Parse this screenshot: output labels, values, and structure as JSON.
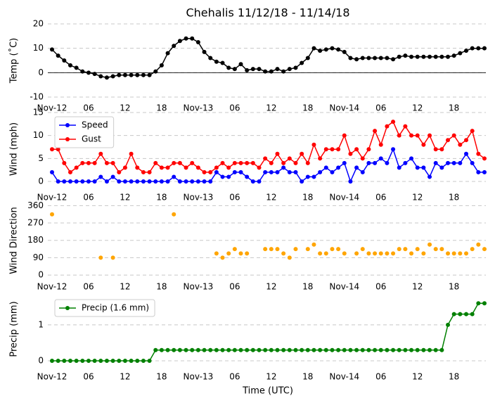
{
  "chart_data": [
    {
      "type": "line",
      "title": "Chehalis 11/12/18 - 11/14/18",
      "ylabel": "Temp (˚C)",
      "x": [
        0,
        1,
        2,
        3,
        4,
        5,
        6,
        7,
        8,
        9,
        10,
        11,
        12,
        13,
        14,
        15,
        16,
        17,
        18,
        19,
        20,
        21,
        22,
        23,
        24,
        25,
        26,
        27,
        28,
        29,
        30,
        31,
        32,
        33,
        34,
        35,
        36,
        37,
        38,
        39,
        40,
        41,
        42,
        43,
        44,
        45,
        46,
        47,
        48,
        49,
        50,
        51,
        52,
        53,
        54,
        55,
        56,
        57,
        58,
        59,
        60,
        61,
        62,
        63,
        64,
        65,
        66,
        67,
        68,
        69,
        70,
        71
      ],
      "xlim": [
        0,
        71
      ],
      "xticks": [
        {
          "value": 0,
          "label": "Nov-12"
        },
        {
          "value": 6,
          "label": "06"
        },
        12,
        18,
        {
          "value": 24,
          "label": "Nov-13"
        },
        {
          "value": 30,
          "label": "06"
        },
        {
          "value": 36,
          "label": "12"
        },
        {
          "value": 42,
          "label": "18"
        },
        {
          "value": 48,
          "label": "Nov-14"
        },
        {
          "value": 54,
          "label": "06"
        },
        {
          "value": 60,
          "label": "12"
        },
        {
          "value": 66,
          "label": "18"
        }
      ],
      "ylim": [
        -10,
        20
      ],
      "yticks": [
        -10,
        0,
        10,
        20
      ],
      "grid": true,
      "zero_line": true,
      "series": [
        {
          "color": "#000000",
          "values": [
            9.5,
            7,
            5,
            3,
            2,
            0.5,
            0,
            -0.5,
            -1.5,
            -2,
            -1.5,
            -1,
            -1,
            -1,
            -1,
            -1,
            -1,
            0.5,
            3,
            8,
            11,
            13,
            14,
            14,
            12.5,
            8.5,
            6,
            4.5,
            4,
            2,
            1.5,
            3.5,
            1,
            1.5,
            1.5,
            0.5,
            0.5,
            1.5,
            0.5,
            1.5,
            2,
            4,
            6,
            10,
            9,
            9.5,
            10,
            9.5,
            8.5,
            6,
            5.5,
            6,
            6,
            6,
            6,
            6,
            5.5,
            6.5,
            7,
            6.5,
            6.5,
            6.5,
            6.5,
            6.5,
            6.5,
            6.5,
            7,
            8,
            9,
            10,
            10,
            10
          ]
        }
      ]
    },
    {
      "type": "line",
      "ylabel": "Wind (mph)",
      "x": [
        0,
        1,
        2,
        3,
        4,
        5,
        6,
        7,
        8,
        9,
        10,
        11,
        12,
        13,
        14,
        15,
        16,
        17,
        18,
        19,
        20,
        21,
        22,
        23,
        24,
        25,
        26,
        27,
        28,
        29,
        30,
        31,
        32,
        33,
        34,
        35,
        36,
        37,
        38,
        39,
        40,
        41,
        42,
        43,
        44,
        45,
        46,
        47,
        48,
        49,
        50,
        51,
        52,
        53,
        54,
        55,
        56,
        57,
        58,
        59,
        60,
        61,
        62,
        63,
        64,
        65,
        66,
        67,
        68,
        69,
        70,
        71
      ],
      "xlim": [
        0,
        71
      ],
      "xticks": [
        {
          "value": 0,
          "label": "Nov-12"
        },
        {
          "value": 6,
          "label": "06"
        },
        12,
        18,
        {
          "value": 24,
          "label": "Nov-13"
        },
        {
          "value": 30,
          "label": "06"
        },
        {
          "value": 36,
          "label": "12"
        },
        {
          "value": 42,
          "label": "18"
        },
        {
          "value": 48,
          "label": "Nov-14"
        },
        {
          "value": 54,
          "label": "06"
        },
        {
          "value": 60,
          "label": "12"
        },
        {
          "value": 66,
          "label": "18"
        }
      ],
      "ylim": [
        -1,
        15
      ],
      "yticks": [
        0,
        5,
        10,
        15
      ],
      "grid": true,
      "legend": "upper left",
      "series": [
        {
          "name": "Speed",
          "color": "#0000ff",
          "values": [
            2,
            0,
            0,
            0,
            0,
            0,
            0,
            0,
            1,
            0,
            1,
            0,
            0,
            0,
            0,
            0,
            0,
            0,
            0,
            0,
            1,
            0,
            0,
            0,
            0,
            0,
            0,
            2,
            1,
            1,
            2,
            2,
            1,
            0,
            0,
            2,
            2,
            2,
            3,
            2,
            2,
            0,
            1,
            1,
            2,
            3,
            2,
            3,
            4,
            0,
            3,
            2,
            4,
            4,
            5,
            4,
            7,
            3,
            4,
            5,
            3,
            3,
            1,
            4,
            3,
            4,
            4,
            4,
            6,
            4,
            2,
            2
          ]
        },
        {
          "name": "Gust",
          "color": "#ff0000",
          "values": [
            7,
            7,
            4,
            2,
            3,
            4,
            4,
            4,
            6,
            4,
            4,
            2,
            3,
            6,
            3,
            2,
            2,
            4,
            3,
            3,
            4,
            4,
            3,
            4,
            3,
            2,
            2,
            3,
            4,
            3,
            4,
            4,
            4,
            4,
            3,
            5,
            4,
            6,
            4,
            5,
            4,
            6,
            4,
            8,
            5,
            7,
            7,
            7,
            10,
            6,
            7,
            5,
            7,
            11,
            8,
            12,
            13,
            10,
            12,
            10,
            10,
            8,
            10,
            7,
            7,
            9,
            10,
            8,
            9,
            11,
            6,
            5
          ]
        }
      ]
    },
    {
      "type": "scatter",
      "ylabel": "Wind Direction",
      "x": [
        0,
        1,
        2,
        3,
        4,
        5,
        6,
        7,
        8,
        9,
        10,
        11,
        12,
        13,
        14,
        15,
        16,
        17,
        18,
        19,
        20,
        21,
        22,
        23,
        24,
        25,
        26,
        27,
        28,
        29,
        30,
        31,
        32,
        33,
        34,
        35,
        36,
        37,
        38,
        39,
        40,
        41,
        42,
        43,
        44,
        45,
        46,
        47,
        48,
        49,
        50,
        51,
        52,
        53,
        54,
        55,
        56,
        57,
        58,
        59,
        60,
        61,
        62,
        63,
        64,
        65,
        66,
        67,
        68,
        69,
        70,
        71
      ],
      "xlim": [
        0,
        71
      ],
      "xticks": [
        {
          "value": 0,
          "label": "Nov-12"
        },
        {
          "value": 6,
          "label": "06"
        },
        12,
        18,
        {
          "value": 24,
          "label": "Nov-13"
        },
        {
          "value": 30,
          "label": "06"
        },
        {
          "value": 36,
          "label": "12"
        },
        {
          "value": 42,
          "label": "18"
        },
        {
          "value": 48,
          "label": "Nov-14"
        },
        {
          "value": 54,
          "label": "06"
        },
        {
          "value": 60,
          "label": "12"
        },
        {
          "value": 66,
          "label": "18"
        }
      ],
      "ylim": [
        -20,
        365
      ],
      "yticks": [
        0,
        90,
        180,
        270,
        360
      ],
      "grid": true,
      "series": [
        {
          "color": "#ffa500",
          "values": [
            315,
            null,
            null,
            null,
            null,
            null,
            null,
            null,
            90,
            null,
            90,
            null,
            null,
            null,
            null,
            null,
            null,
            null,
            null,
            null,
            315,
            null,
            null,
            null,
            null,
            null,
            null,
            112,
            90,
            112,
            135,
            112,
            112,
            null,
            null,
            135,
            135,
            135,
            112,
            90,
            135,
            null,
            135,
            158,
            112,
            112,
            135,
            135,
            112,
            null,
            112,
            135,
            112,
            112,
            112,
            112,
            112,
            135,
            135,
            112,
            135,
            112,
            158,
            135,
            135,
            112,
            112,
            112,
            112,
            135,
            158,
            135
          ]
        }
      ]
    },
    {
      "type": "line",
      "ylabel": "Precip (mm)",
      "xlabel": "Time (UTC)",
      "x": [
        0,
        1,
        2,
        3,
        4,
        5,
        6,
        7,
        8,
        9,
        10,
        11,
        12,
        13,
        14,
        15,
        16,
        17,
        18,
        19,
        20,
        21,
        22,
        23,
        24,
        25,
        26,
        27,
        28,
        29,
        30,
        31,
        32,
        33,
        34,
        35,
        36,
        37,
        38,
        39,
        40,
        41,
        42,
        43,
        44,
        45,
        46,
        47,
        48,
        49,
        50,
        51,
        52,
        53,
        54,
        55,
        56,
        57,
        58,
        59,
        60,
        61,
        62,
        63,
        64,
        65,
        66,
        67,
        68,
        69,
        70,
        71
      ],
      "xlim": [
        0,
        71
      ],
      "xticks": [
        {
          "value": 0,
          "label": "Nov-12"
        },
        {
          "value": 6,
          "label": "06"
        },
        12,
        18,
        {
          "value": 24,
          "label": "Nov-13"
        },
        {
          "value": 30,
          "label": "06"
        },
        {
          "value": 36,
          "label": "12"
        },
        {
          "value": 42,
          "label": "18"
        },
        {
          "value": 48,
          "label": "Nov-14"
        },
        {
          "value": 54,
          "label": "06"
        },
        {
          "value": 60,
          "label": "12"
        },
        {
          "value": 66,
          "label": "18"
        }
      ],
      "ylim": [
        -0.15,
        1.82
      ],
      "yticks": [
        0,
        1
      ],
      "grid": true,
      "legend": "upper left",
      "series": [
        {
          "name": "Precip (1.6 mm)",
          "color": "#008000",
          "values": [
            0,
            0,
            0,
            0,
            0,
            0,
            0,
            0,
            0,
            0,
            0,
            0,
            0,
            0,
            0,
            0,
            0,
            0.3,
            0.3,
            0.3,
            0.3,
            0.3,
            0.3,
            0.3,
            0.3,
            0.3,
            0.3,
            0.3,
            0.3,
            0.3,
            0.3,
            0.3,
            0.3,
            0.3,
            0.3,
            0.3,
            0.3,
            0.3,
            0.3,
            0.3,
            0.3,
            0.3,
            0.3,
            0.3,
            0.3,
            0.3,
            0.3,
            0.3,
            0.3,
            0.3,
            0.3,
            0.3,
            0.3,
            0.3,
            0.3,
            0.3,
            0.3,
            0.3,
            0.3,
            0.3,
            0.3,
            0.3,
            0.3,
            0.3,
            0.3,
            1.0,
            1.3,
            1.3,
            1.3,
            1.3,
            1.6,
            1.6
          ]
        }
      ]
    }
  ]
}
